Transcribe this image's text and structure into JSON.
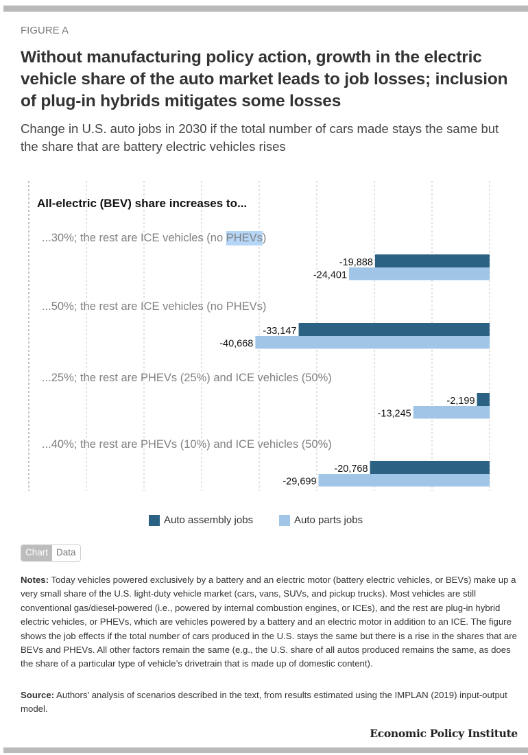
{
  "figure": {
    "label": "FIGURE A",
    "title": "Without manufacturing policy action, growth in the electric vehicle share of the auto market leads to job losses; inclusion of plug-in hybrids mitigates some losses",
    "subtitle": "Change in U.S. auto jobs in 2030 if the total number of cars made stays the same but the share that are battery electric vehicles rises"
  },
  "chart_data": {
    "type": "bar",
    "orientation": "horizontal",
    "title": "All-electric (BEV) share increases to...",
    "categories": [
      "...30%; the rest are ICE vehicles (no PHEVs)",
      "...50%; the rest are ICE vehicles (no PHEVs)",
      "...25%; the rest are PHEVs (25%) and ICE vehicles (50%)",
      "...40%; the rest are PHEVs (10%) and ICE vehicles (50%)"
    ],
    "series": [
      {
        "name": "Auto assembly jobs",
        "color": "#2b6283",
        "values": [
          -19888,
          -33147,
          -2199,
          -20768
        ],
        "labels": [
          "-19,888",
          "-33,147",
          "-2,199",
          "-20,768"
        ]
      },
      {
        "name": "Auto parts jobs",
        "color": "#a0c5e7",
        "values": [
          -24401,
          -40668,
          -13245,
          -29699
        ],
        "labels": [
          "-24,401",
          "-40,668",
          "-13,245",
          "-29,699"
        ]
      }
    ],
    "xlim": [
      -80000,
      0
    ],
    "grid_step": 10000,
    "grid": true,
    "legend_position": "bottom-center",
    "selected_text": "PHEVs"
  },
  "legend": {
    "items": [
      {
        "label": "Auto assembly jobs",
        "color": "#2b6283"
      },
      {
        "label": "Auto parts jobs",
        "color": "#a0c5e7"
      }
    ]
  },
  "view_toggle": {
    "chart_label": "Chart",
    "data_label": "Data",
    "active": "Chart"
  },
  "notes": {
    "label": "Notes:",
    "text": " Today vehicles powered exclusively by a battery and an electric motor (battery electric vehicles, or BEVs) make up a very small share of the U.S. light-duty vehicle market (cars, vans, SUVs, and pickup trucks). Most vehicles are still conventional gas/diesel-powered (i.e., powered by internal combustion engines, or ICEs), and the rest are plug-in hybrid electric vehicles, or PHEVs, which are vehicles pow­ered by a battery and an electric motor in addition to an ICE. The figure shows the job effects if the to­tal number of cars produced in the U.S. stays the same but there is a rise in the shares that are BEVs and PHEVs. All other factors remain the same (e.g., the U.S. share of all autos produced remains the same, as does the share of a particular type of vehicle’s drivetrain that is made up of domestic content)."
  },
  "source": {
    "label": "Source:",
    "text": " Authors’ analysis of scenarios described in the text, from results estimated using the IMPLAN (2019) input-output model."
  },
  "brand": "Economic Policy Institute"
}
